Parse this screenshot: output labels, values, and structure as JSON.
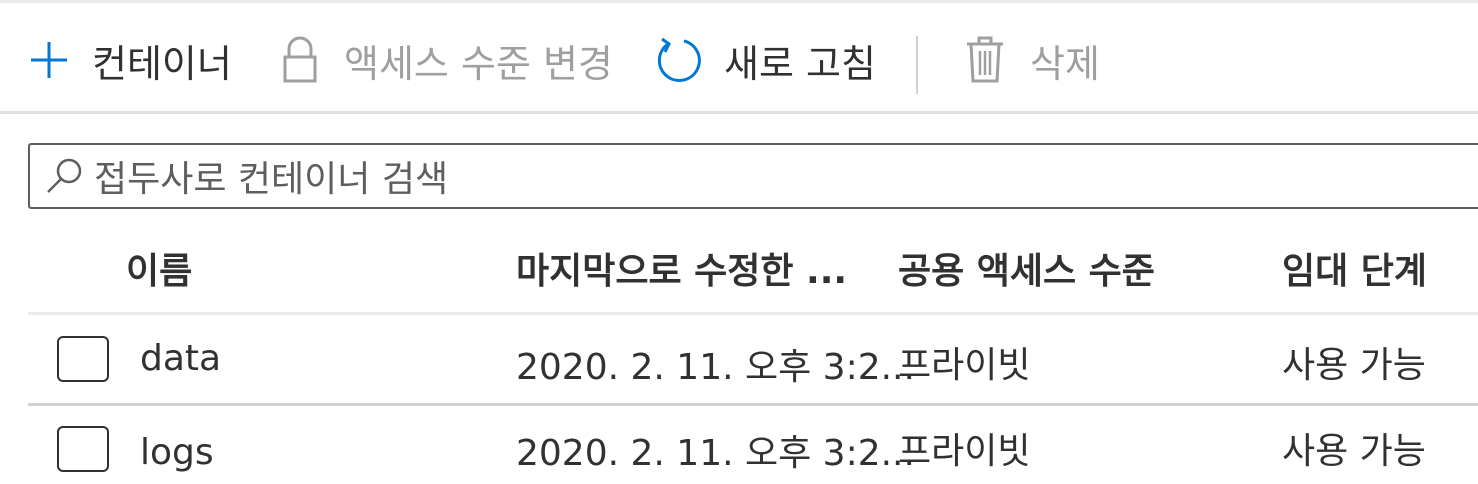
{
  "toolbar": {
    "add_label": "컨테이너",
    "access_label": "액세스 수준 변경",
    "refresh_label": "새로 고침",
    "delete_label": "삭제"
  },
  "search": {
    "placeholder": "접두사로 컨테이너 검색"
  },
  "table": {
    "headers": {
      "name": "이름",
      "modified": "마지막으로 수정한 ...",
      "access": "공용 액세스 수준",
      "lease": "임대 단계"
    },
    "rows": [
      {
        "name": "data",
        "modified": "2020. 2. 11. 오후 3:2...",
        "access": "프라이빗",
        "lease": "사용 가능"
      },
      {
        "name": "logs",
        "modified": "2020. 2. 11. 오후 3:2...",
        "access": "프라이빗",
        "lease": "사용 가능"
      }
    ]
  },
  "colors": {
    "accent": "#0078d4",
    "disabled": "#a19f9d",
    "text": "#323130"
  },
  "icons": {
    "add": "plus-icon",
    "access": "lock-icon",
    "refresh": "refresh-icon",
    "delete": "trash-icon",
    "search": "search-icon"
  }
}
